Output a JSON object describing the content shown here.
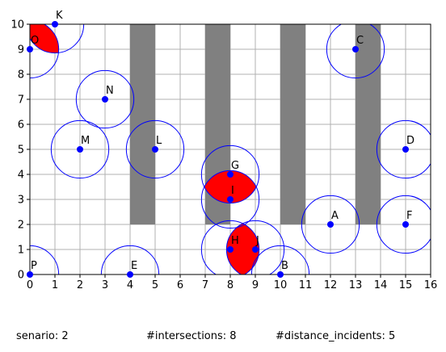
{
  "chart_data": {
    "type": "scatter",
    "title": "",
    "xlabel": "",
    "ylabel": "",
    "xlim": [
      0,
      16
    ],
    "ylim": [
      0,
      10
    ],
    "xticks": [
      0,
      1,
      2,
      3,
      4,
      5,
      6,
      7,
      8,
      9,
      10,
      11,
      12,
      13,
      14,
      15,
      16
    ],
    "yticks": [
      0,
      1,
      2,
      3,
      4,
      5,
      6,
      7,
      8,
      9,
      10
    ],
    "grid": true,
    "colors": {
      "point": "#0000ff",
      "circle": "#0000ff",
      "obstacle": "#808080",
      "intersection": "#ff0000",
      "grid": "#b0b0b0"
    },
    "obstacles": [
      {
        "x0": 4,
        "x1": 5,
        "y0": 2,
        "y1": 10
      },
      {
        "x0": 7,
        "x1": 8,
        "y0": 2,
        "y1": 10
      },
      {
        "x0": 10,
        "x1": 11,
        "y0": 2,
        "y1": 10
      },
      {
        "x0": 13,
        "x1": 14,
        "y0": 2,
        "y1": 10
      }
    ],
    "points": [
      {
        "label": "A",
        "x": 12,
        "y": 2
      },
      {
        "label": "B",
        "x": 10,
        "y": 0
      },
      {
        "label": "C",
        "x": 13,
        "y": 9
      },
      {
        "label": "D",
        "x": 15,
        "y": 5
      },
      {
        "label": "E",
        "x": 4,
        "y": 0
      },
      {
        "label": "F",
        "x": 15,
        "y": 2
      },
      {
        "label": "G",
        "x": 8,
        "y": 4
      },
      {
        "label": "H",
        "x": 8,
        "y": 1
      },
      {
        "label": "I",
        "x": 8,
        "y": 3
      },
      {
        "label": "J",
        "x": 9,
        "y": 1
      },
      {
        "label": "K",
        "x": 1,
        "y": 10
      },
      {
        "label": "L",
        "x": 5,
        "y": 5
      },
      {
        "label": "M",
        "x": 2,
        "y": 5
      },
      {
        "label": "N",
        "x": 3,
        "y": 7
      },
      {
        "label": "O",
        "x": 0,
        "y": 9
      },
      {
        "label": "P",
        "x": 0,
        "y": 0
      }
    ],
    "radius": 1.15,
    "intersecting_pairs": [
      [
        "K",
        "O"
      ],
      [
        "G",
        "I"
      ],
      [
        "H",
        "J"
      ]
    ]
  },
  "footer": {
    "scenario": "senario: 2",
    "intersections": "#intersections: 8",
    "distance_incidents": "#distance_incidents: 5"
  }
}
